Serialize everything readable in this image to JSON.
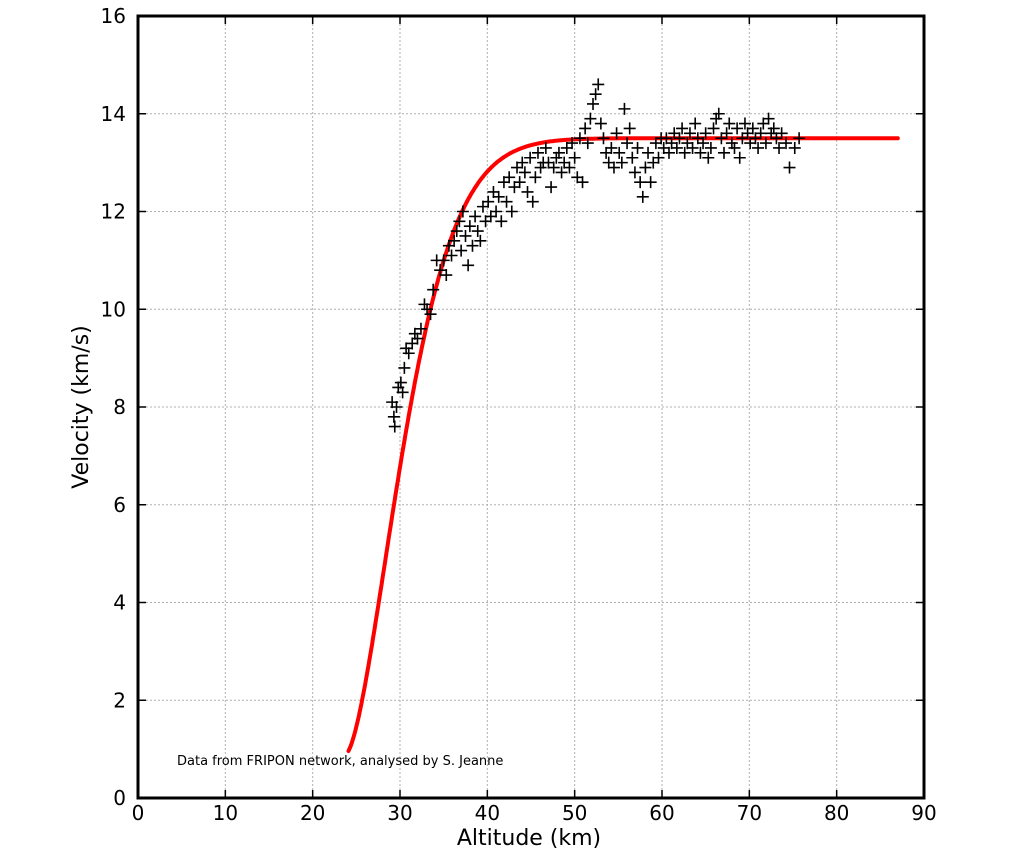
{
  "chart_data": {
    "type": "scatter",
    "title": "",
    "xlabel": "Altitude (km)",
    "ylabel": "Velocity (km/s)",
    "xlim": [
      0,
      90
    ],
    "ylim": [
      0,
      16
    ],
    "xticks": [
      "0",
      "10",
      "20",
      "30",
      "40",
      "50",
      "60",
      "70",
      "80",
      "90"
    ],
    "yticks": [
      "0",
      "2",
      "4",
      "6",
      "8",
      "10",
      "12",
      "14",
      "16"
    ],
    "grid": true,
    "annotation": "Data from FRIPON network, analysed by S. Jeanne",
    "colors": {
      "measurements": "#000000",
      "fit": "#ff0000"
    },
    "series": [
      {
        "type": "scatter",
        "marker": "plus",
        "points": [
          [
            29.1,
            8.1
          ],
          [
            29.3,
            7.8
          ],
          [
            29.4,
            7.6
          ],
          [
            29.6,
            8.0
          ],
          [
            29.8,
            8.4
          ],
          [
            30.1,
            8.5
          ],
          [
            30.3,
            8.3
          ],
          [
            30.5,
            8.8
          ],
          [
            30.7,
            9.2
          ],
          [
            31.0,
            9.1
          ],
          [
            31.4,
            9.3
          ],
          [
            31.7,
            9.5
          ],
          [
            32.0,
            9.4
          ],
          [
            32.4,
            9.6
          ],
          [
            32.8,
            10.1
          ],
          [
            33.1,
            10.0
          ],
          [
            33.5,
            9.9
          ],
          [
            33.8,
            10.4
          ],
          [
            34.2,
            11.0
          ],
          [
            34.6,
            10.8
          ],
          [
            35.0,
            11.0
          ],
          [
            35.3,
            10.7
          ],
          [
            35.6,
            11.3
          ],
          [
            35.9,
            11.1
          ],
          [
            36.2,
            11.4
          ],
          [
            36.5,
            11.6
          ],
          [
            36.8,
            11.8
          ],
          [
            37.0,
            11.2
          ],
          [
            37.2,
            12.0
          ],
          [
            37.5,
            11.5
          ],
          [
            37.8,
            10.9
          ],
          [
            38.0,
            11.7
          ],
          [
            38.3,
            11.3
          ],
          [
            38.6,
            11.9
          ],
          [
            38.9,
            11.6
          ],
          [
            39.2,
            11.4
          ],
          [
            39.5,
            12.1
          ],
          [
            39.8,
            11.8
          ],
          [
            40.1,
            12.2
          ],
          [
            40.4,
            11.9
          ],
          [
            40.7,
            12.4
          ],
          [
            41.0,
            12.0
          ],
          [
            41.3,
            12.3
          ],
          [
            41.6,
            11.8
          ],
          [
            41.9,
            12.6
          ],
          [
            42.2,
            12.2
          ],
          [
            42.5,
            12.7
          ],
          [
            42.8,
            12.0
          ],
          [
            43.1,
            12.5
          ],
          [
            43.4,
            12.9
          ],
          [
            43.7,
            12.6
          ],
          [
            44.0,
            13.0
          ],
          [
            44.3,
            12.8
          ],
          [
            44.6,
            12.4
          ],
          [
            44.9,
            13.1
          ],
          [
            45.2,
            12.2
          ],
          [
            45.5,
            12.7
          ],
          [
            45.8,
            13.2
          ],
          [
            46.1,
            12.9
          ],
          [
            46.4,
            13.0
          ],
          [
            46.7,
            13.3
          ],
          [
            47.0,
            13.0
          ],
          [
            47.3,
            12.5
          ],
          [
            47.6,
            12.9
          ],
          [
            47.9,
            13.1
          ],
          [
            48.2,
            13.2
          ],
          [
            48.5,
            12.8
          ],
          [
            48.8,
            13.0
          ],
          [
            49.1,
            13.3
          ],
          [
            49.4,
            12.9
          ],
          [
            49.7,
            13.4
          ],
          [
            50.0,
            13.1
          ],
          [
            50.3,
            12.7
          ],
          [
            50.6,
            13.5
          ],
          [
            50.9,
            12.6
          ],
          [
            51.2,
            13.7
          ],
          [
            51.5,
            13.4
          ],
          [
            51.8,
            13.9
          ],
          [
            52.1,
            14.2
          ],
          [
            52.4,
            14.4
          ],
          [
            52.7,
            14.6
          ],
          [
            53.0,
            13.8
          ],
          [
            53.3,
            13.5
          ],
          [
            53.6,
            13.2
          ],
          [
            53.9,
            13.0
          ],
          [
            54.2,
            13.3
          ],
          [
            54.5,
            12.9
          ],
          [
            54.8,
            13.6
          ],
          [
            55.1,
            13.2
          ],
          [
            55.4,
            13.0
          ],
          [
            55.7,
            14.1
          ],
          [
            56.0,
            13.4
          ],
          [
            56.3,
            13.7
          ],
          [
            56.6,
            13.1
          ],
          [
            56.9,
            12.8
          ],
          [
            57.2,
            13.3
          ],
          [
            57.5,
            12.6
          ],
          [
            57.8,
            12.3
          ],
          [
            58.1,
            12.9
          ],
          [
            58.4,
            13.2
          ],
          [
            58.7,
            12.6
          ],
          [
            59.0,
            13.0
          ],
          [
            59.3,
            13.4
          ],
          [
            59.6,
            13.1
          ],
          [
            59.9,
            13.5
          ],
          [
            60.2,
            13.3
          ],
          [
            60.5,
            13.5
          ],
          [
            60.8,
            13.2
          ],
          [
            61.1,
            13.4
          ],
          [
            61.4,
            13.6
          ],
          [
            61.7,
            13.3
          ],
          [
            62.0,
            13.5
          ],
          [
            62.3,
            13.7
          ],
          [
            62.6,
            13.2
          ],
          [
            62.9,
            13.4
          ],
          [
            63.2,
            13.6
          ],
          [
            63.5,
            13.3
          ],
          [
            63.8,
            13.8
          ],
          [
            64.1,
            13.5
          ],
          [
            64.4,
            13.2
          ],
          [
            64.7,
            13.4
          ],
          [
            65.0,
            13.6
          ],
          [
            65.3,
            13.1
          ],
          [
            65.6,
            13.3
          ],
          [
            65.9,
            13.7
          ],
          [
            66.2,
            13.9
          ],
          [
            66.5,
            14.0
          ],
          [
            66.8,
            13.5
          ],
          [
            67.1,
            13.2
          ],
          [
            67.4,
            13.6
          ],
          [
            67.7,
            13.8
          ],
          [
            68.0,
            13.4
          ],
          [
            68.3,
            13.3
          ],
          [
            68.6,
            13.7
          ],
          [
            68.9,
            13.1
          ],
          [
            69.2,
            13.5
          ],
          [
            69.5,
            13.8
          ],
          [
            69.8,
            13.6
          ],
          [
            70.1,
            13.4
          ],
          [
            70.4,
            13.7
          ],
          [
            70.7,
            13.5
          ],
          [
            71.0,
            13.3
          ],
          [
            71.3,
            13.6
          ],
          [
            71.6,
            13.8
          ],
          [
            71.9,
            13.4
          ],
          [
            72.2,
            13.9
          ],
          [
            72.5,
            13.6
          ],
          [
            72.8,
            13.7
          ],
          [
            73.1,
            13.5
          ],
          [
            73.4,
            13.3
          ],
          [
            73.7,
            13.6
          ],
          [
            74.2,
            13.4
          ],
          [
            74.6,
            12.9
          ],
          [
            75.2,
            13.3
          ],
          [
            75.7,
            13.5
          ]
        ]
      },
      {
        "type": "line",
        "model": "fit",
        "x_range": [
          24.1,
          87
        ],
        "asymptote": 13.5
      }
    ]
  }
}
